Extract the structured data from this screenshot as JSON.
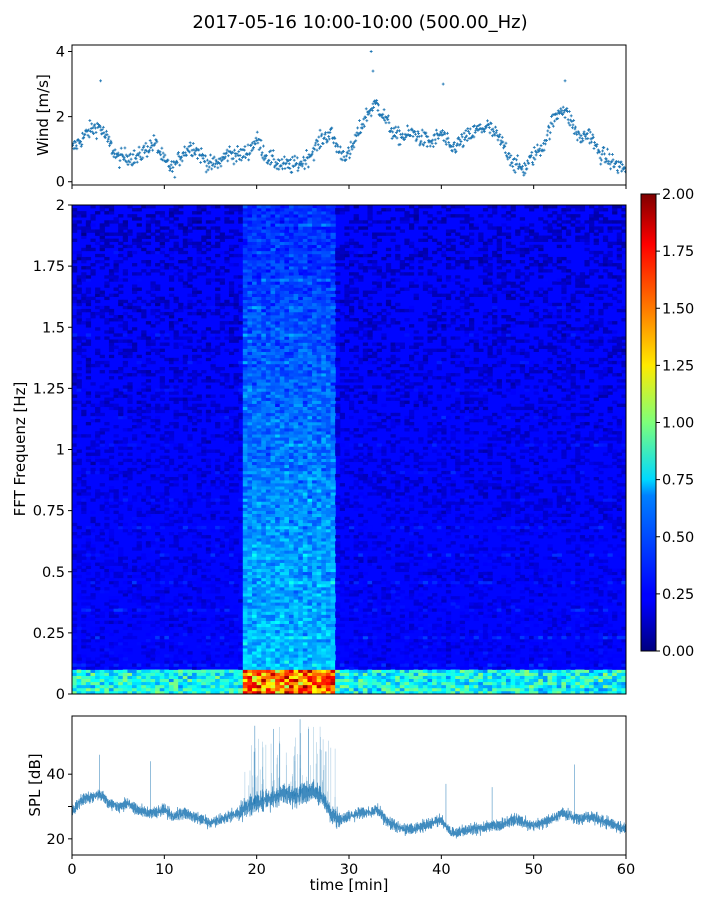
{
  "figure": {
    "title": "2017-05-16 10:00-10:00 (500.00_Hz)"
  },
  "chart_data": [
    {
      "type": "scatter",
      "name": "wind",
      "ylabel": "Wind [m/s]",
      "xlim": [
        0,
        60
      ],
      "ylim": [
        -0.1,
        4.2
      ],
      "yticks": [
        0,
        2,
        4
      ],
      "color": "#1f77b4",
      "marker": "+",
      "envelope": {
        "x": [
          0,
          1,
          2,
          3,
          4,
          5,
          6,
          7,
          8,
          9,
          10,
          11,
          12,
          13,
          14,
          15,
          16,
          17,
          18,
          19,
          20,
          21,
          22,
          23,
          24,
          25,
          26,
          27,
          28,
          29,
          30,
          31,
          32,
          33,
          34,
          35,
          36,
          37,
          38,
          39,
          40,
          41,
          42,
          43,
          44,
          45,
          46,
          47,
          48,
          49,
          50,
          51,
          52,
          53,
          54,
          55,
          56,
          57,
          58,
          59,
          60
        ],
        "y": [
          1.0,
          1.3,
          1.6,
          1.7,
          1.2,
          0.7,
          0.8,
          0.7,
          1.0,
          1.2,
          0.6,
          0.4,
          0.9,
          1.1,
          0.8,
          0.5,
          0.6,
          0.9,
          0.8,
          0.9,
          1.3,
          0.8,
          0.6,
          0.5,
          0.5,
          0.6,
          0.9,
          1.3,
          1.5,
          0.9,
          0.8,
          1.5,
          2.1,
          2.4,
          1.9,
          1.4,
          1.4,
          1.5,
          1.3,
          1.2,
          1.5,
          1.0,
          1.2,
          1.4,
          1.6,
          1.7,
          1.4,
          1.0,
          0.5,
          0.4,
          0.8,
          1.1,
          1.8,
          2.3,
          1.9,
          1.3,
          1.5,
          0.9,
          0.7,
          0.5,
          0.4
        ]
      },
      "peaks": [
        {
          "x": 32.4,
          "y": 4.0
        },
        {
          "x": 32.6,
          "y": 3.4
        },
        {
          "x": 3.1,
          "y": 3.1
        },
        {
          "x": 53.4,
          "y": 3.1
        },
        {
          "x": 40.2,
          "y": 3.0
        }
      ]
    },
    {
      "type": "heatmap",
      "name": "spectrogram",
      "ylabel": "FFT Frequenz [Hz]",
      "xlim": [
        0,
        60
      ],
      "ylim": [
        0,
        2
      ],
      "yticks": [
        0,
        0.25,
        0.5,
        0.75,
        1,
        1.25,
        1.5,
        1.75,
        2
      ],
      "ytick_labels": [
        "0",
        "0.25",
        "0.5",
        "0.75",
        "1",
        "1.25",
        "1.5",
        "1.75",
        "2"
      ],
      "colormap": "jet",
      "colorbar": {
        "range": [
          0,
          2
        ],
        "ticks": [
          "0.00",
          "0.25",
          "0.50",
          "0.75",
          "1.00",
          "1.25",
          "1.50",
          "1.75",
          "2.00"
        ]
      },
      "background_level": 0.22,
      "energy_band": {
        "x": [
          18.5,
          28.5
        ],
        "level": 0.55
      },
      "low_freq_band": {
        "y": [
          0,
          0.1
        ],
        "level": 0.8
      }
    },
    {
      "type": "line",
      "name": "spl",
      "xlabel": "time [min]",
      "ylabel": "SPL [dB]",
      "xlim": [
        0,
        60
      ],
      "ylim": [
        15,
        58
      ],
      "xticks": [
        0,
        10,
        20,
        30,
        40,
        50,
        60
      ],
      "yticks": [
        20,
        30,
        40
      ],
      "ytick_labels": [
        "20",
        "",
        "40"
      ],
      "color": "#1f77b4",
      "envelope": {
        "x": [
          0,
          1,
          2,
          3,
          4,
          5,
          6,
          7,
          8,
          9,
          10,
          11,
          12,
          13,
          14,
          15,
          16,
          17,
          18,
          19,
          20,
          21,
          22,
          23,
          24,
          25,
          26,
          27,
          28,
          29,
          30,
          31,
          32,
          33,
          34,
          35,
          36,
          37,
          38,
          39,
          40,
          41,
          42,
          43,
          44,
          45,
          46,
          47,
          48,
          49,
          50,
          51,
          52,
          53,
          54,
          55,
          56,
          57,
          58,
          59,
          60
        ],
        "y": [
          29,
          32,
          33,
          34,
          31,
          30,
          31,
          29,
          28,
          28,
          29,
          27,
          28,
          27,
          26,
          25,
          26,
          27,
          28,
          30,
          31,
          32,
          33,
          34,
          33,
          34,
          35,
          33,
          28,
          26,
          27,
          28,
          28,
          29,
          26,
          24,
          23,
          23,
          24,
          25,
          26,
          22,
          22,
          23,
          23,
          24,
          24,
          25,
          26,
          25,
          24,
          25,
          26,
          28,
          27,
          26,
          27,
          26,
          25,
          24,
          23
        ]
      },
      "spikes": [
        {
          "x": 3.0,
          "y": 46
        },
        {
          "x": 8.5,
          "y": 44
        },
        {
          "x": 19.8,
          "y": 55
        },
        {
          "x": 21.8,
          "y": 54
        },
        {
          "x": 24.7,
          "y": 57
        },
        {
          "x": 25.6,
          "y": 54
        },
        {
          "x": 27.5,
          "y": 47
        },
        {
          "x": 40.5,
          "y": 37
        },
        {
          "x": 45.5,
          "y": 36
        },
        {
          "x": 54.4,
          "y": 43
        }
      ]
    }
  ]
}
